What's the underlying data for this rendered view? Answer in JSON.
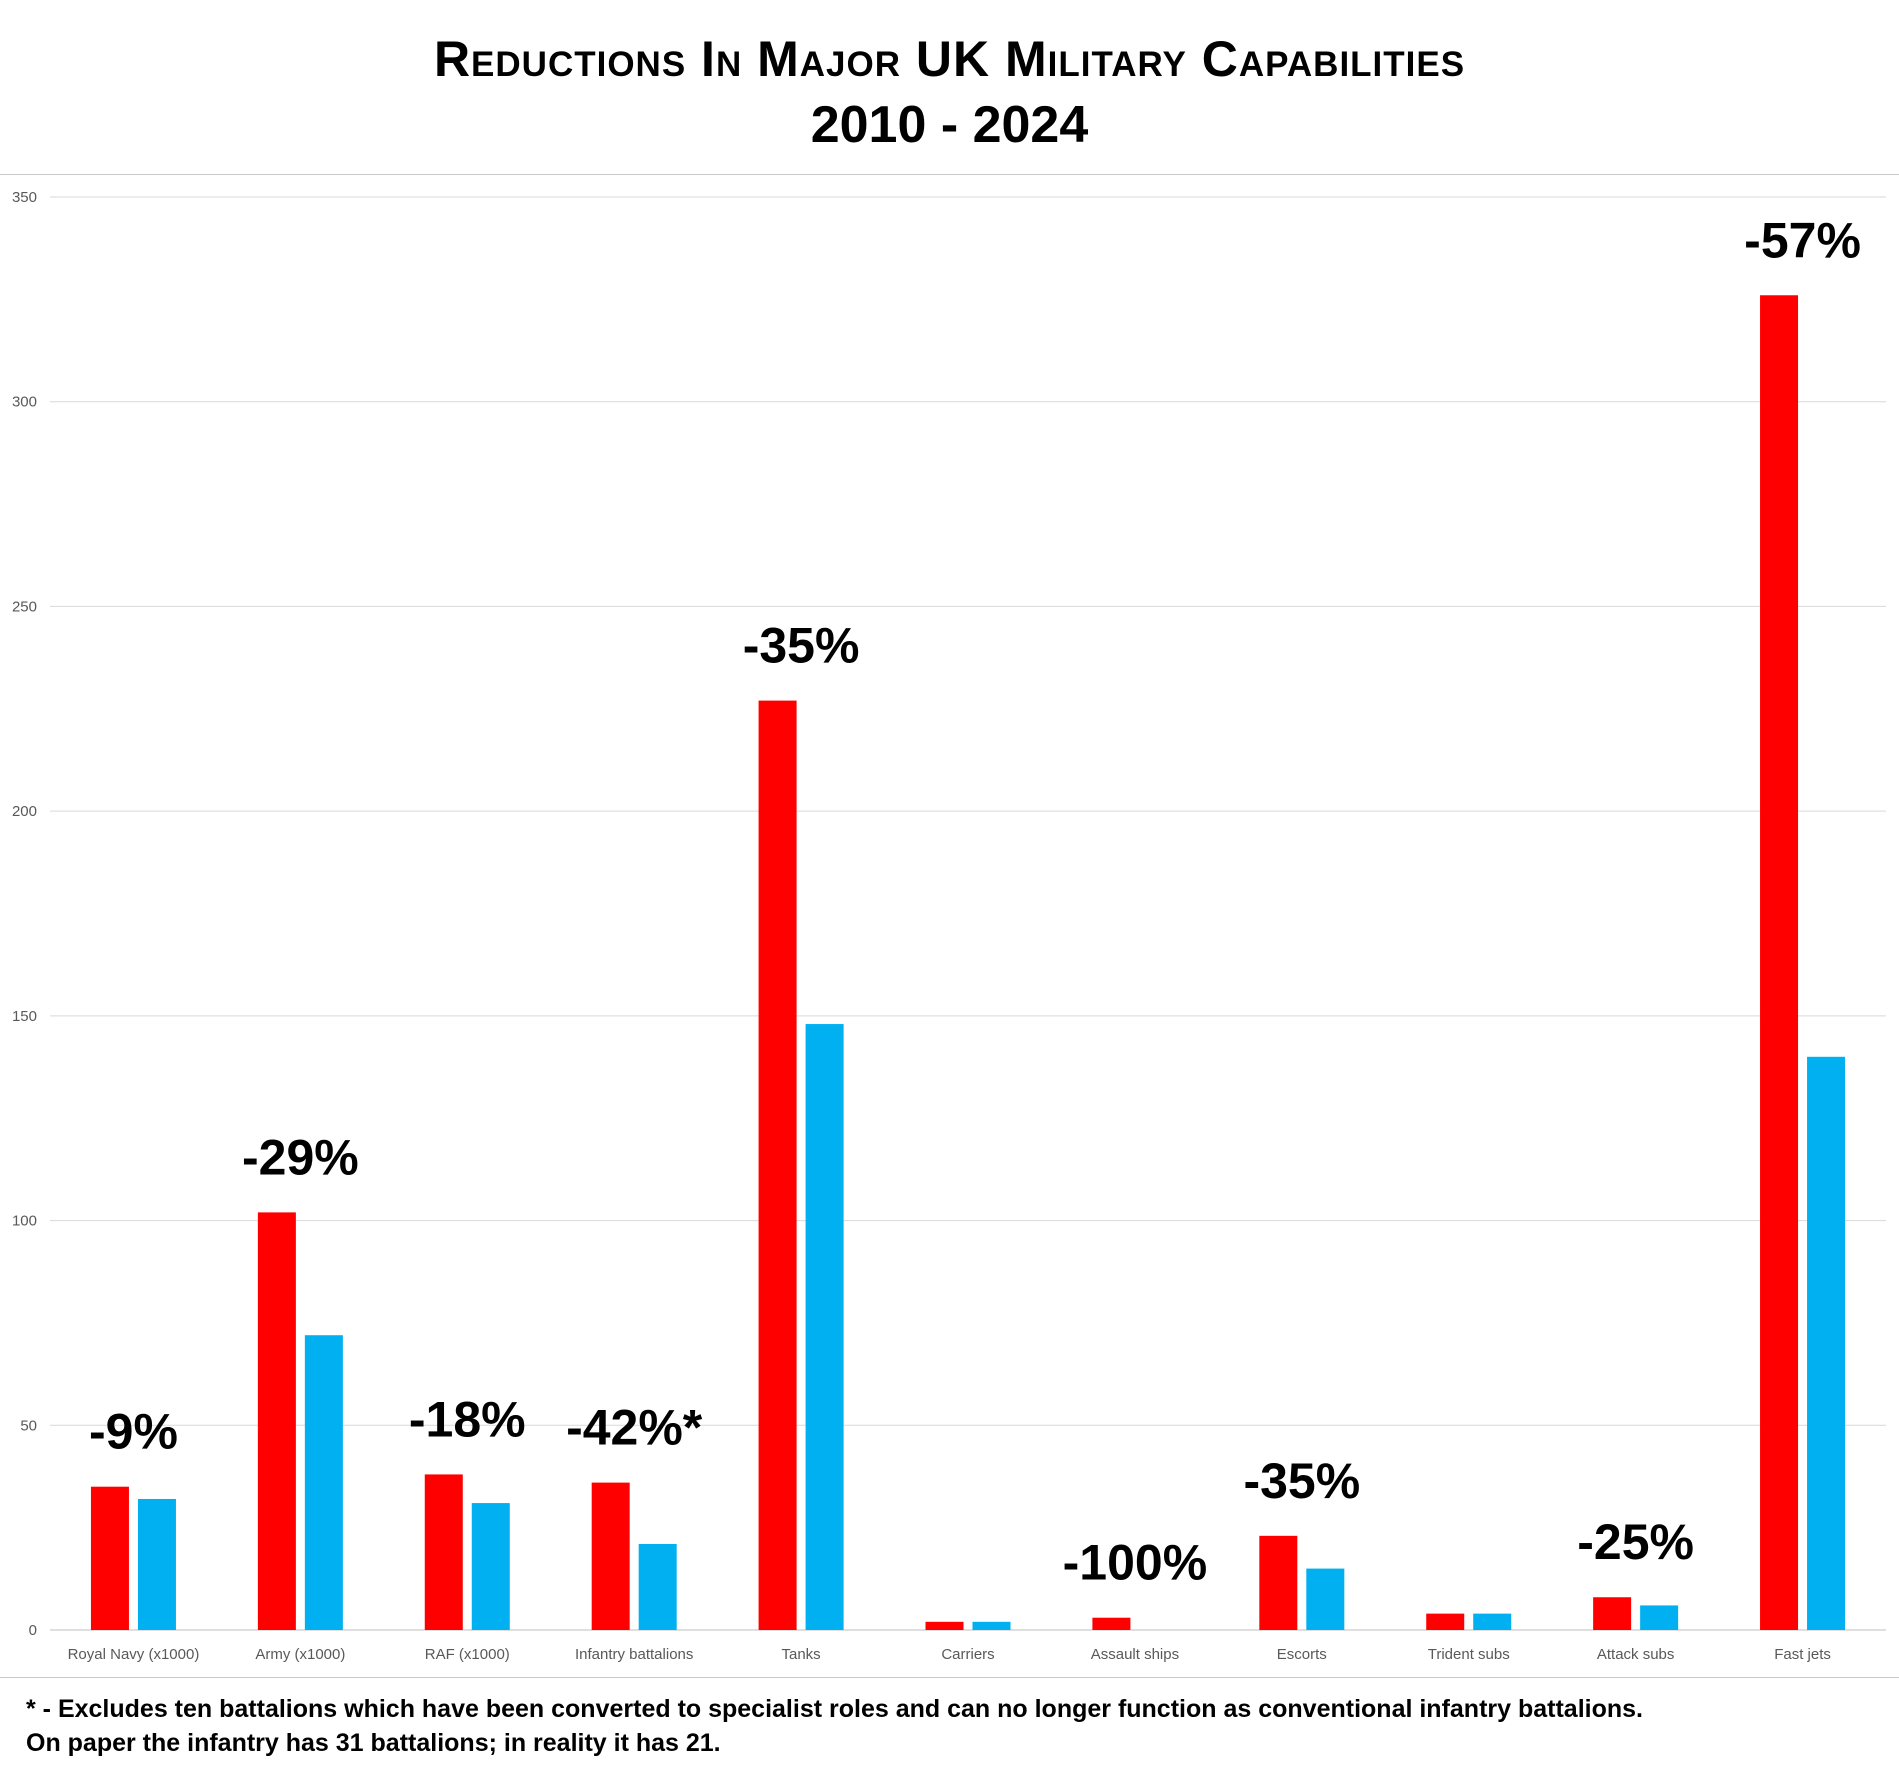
{
  "chart_data": {
    "type": "bar",
    "title_line1": "Reductions In Major UK Military Capabilities",
    "title_line2": "2010 - 2024",
    "xlabel": "",
    "ylabel": "",
    "ylim": [
      0,
      350
    ],
    "yticks": [
      0,
      50,
      100,
      150,
      200,
      250,
      300,
      350
    ],
    "grid": true,
    "categories": [
      "Royal Navy (x1000)",
      "Army (x1000)",
      "RAF (x1000)",
      "Infantry battalions",
      "Tanks",
      "Carriers",
      "Assault ships",
      "Escorts",
      "Trident subs",
      "Attack subs",
      "Fast jets"
    ],
    "series": [
      {
        "values": [
          35,
          102,
          38,
          36,
          227,
          2,
          3,
          23,
          4,
          8,
          326
        ],
        "color": "#ff0000"
      },
      {
        "values": [
          32,
          72,
          31,
          21,
          148,
          2,
          0,
          15,
          4,
          6,
          140
        ],
        "color": "#00b0f0"
      }
    ],
    "annotations": [
      "-9%",
      "-29%",
      "-18%",
      "-42%*",
      "-35%",
      "",
      "-100%",
      "-35%",
      "",
      "-25%",
      "-57%"
    ]
  },
  "footnote": "* - Excludes ten battalions which have been converted to specialist roles and can no longer function as conventional infantry battalions.\nOn paper the infantry has 31 battalions; in reality it has 21."
}
